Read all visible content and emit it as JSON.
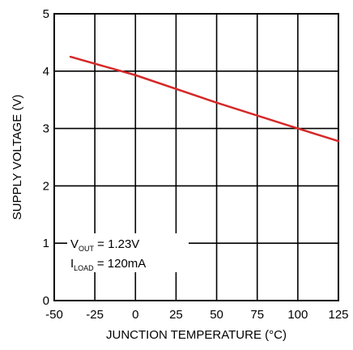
{
  "chart_data": {
    "type": "line",
    "title": "",
    "xlabel": "JUNCTION TEMPERATURE (°C)",
    "ylabel": "SUPPLY VOLTAGE (V)",
    "xlim": [
      -50,
      125
    ],
    "ylim": [
      0,
      5
    ],
    "x_ticks": [
      -50,
      -25,
      0,
      25,
      50,
      75,
      100,
      125
    ],
    "y_ticks": [
      0,
      1,
      2,
      3,
      4,
      5
    ],
    "x_tick_labels": [
      "-50",
      "-25",
      "0",
      "25",
      "50",
      "75",
      "100",
      "125"
    ],
    "y_tick_labels": [
      "0",
      "1",
      "2",
      "3",
      "4",
      "5"
    ],
    "grid": true,
    "legend": "none",
    "series": [
      {
        "color": "#d62828",
        "x": [
          -40,
          0,
          50,
          100,
          125
        ],
        "y": [
          4.25,
          3.93,
          3.45,
          3.0,
          2.78
        ]
      }
    ],
    "annotations": {
      "vout_label": "V",
      "vout_sub": "OUT",
      "vout_value": " = 1.23V",
      "iload_label": "I",
      "iload_sub": "LOAD",
      "iload_value": " = 120mA"
    }
  }
}
